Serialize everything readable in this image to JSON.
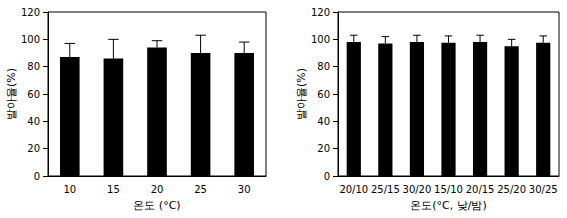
{
  "chart_data": [
    {
      "type": "bar",
      "x_label": "온도 (°C)",
      "y_label": "발아율(%)",
      "categories": [
        "10",
        "15",
        "20",
        "25",
        "30"
      ],
      "values": [
        87,
        86,
        94,
        90,
        90
      ],
      "errors": [
        10,
        14,
        5,
        13,
        8
      ],
      "color": "#000000",
      "ylim": [
        0,
        120
      ],
      "yticks": [
        0,
        20,
        40,
        60,
        80,
        100,
        120
      ],
      "grid": false
    },
    {
      "type": "bar",
      "x_label": "온도(°C, 낮/밤)",
      "y_label": "발아율(%)",
      "categories": [
        "20/10",
        "25/15",
        "30/20",
        "15/10",
        "20/15",
        "25/20",
        "30/25"
      ],
      "values": [
        98,
        97,
        98,
        97.5,
        98,
        95,
        97.5
      ],
      "errors": [
        5,
        5,
        5,
        5,
        5,
        5,
        5
      ],
      "color": "#000000",
      "ylim": [
        0,
        120
      ],
      "yticks": [
        0,
        20,
        40,
        60,
        80,
        100,
        120
      ],
      "grid": false
    }
  ]
}
